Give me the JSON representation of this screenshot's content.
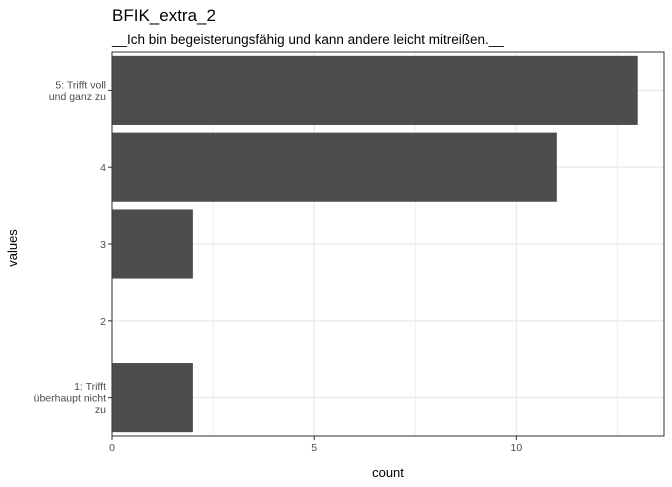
{
  "chart_data": {
    "type": "bar",
    "orientation": "horizontal",
    "title": "BFIK_extra_2",
    "subtitle": "__Ich bin begeisterungsfähig und kann andere leicht mitreißen.__",
    "xlabel": "count",
    "ylabel": "values",
    "categories": [
      [
        "1: Trifft",
        "überhaupt nicht",
        "zu"
      ],
      [
        "2"
      ],
      [
        "3"
      ],
      [
        "4"
      ],
      [
        "5: Trifft voll",
        "und ganz zu"
      ]
    ],
    "values": [
      2,
      0,
      2,
      11,
      13
    ],
    "xlim": [
      0,
      13.65
    ],
    "xticks": [
      "0",
      "5",
      "10"
    ],
    "xtick_values": [
      0,
      5,
      10
    ],
    "grid": true,
    "colors": {
      "bar": "#4d4d4d",
      "grid": "#ebebeb",
      "panel_border": "#333333"
    }
  }
}
